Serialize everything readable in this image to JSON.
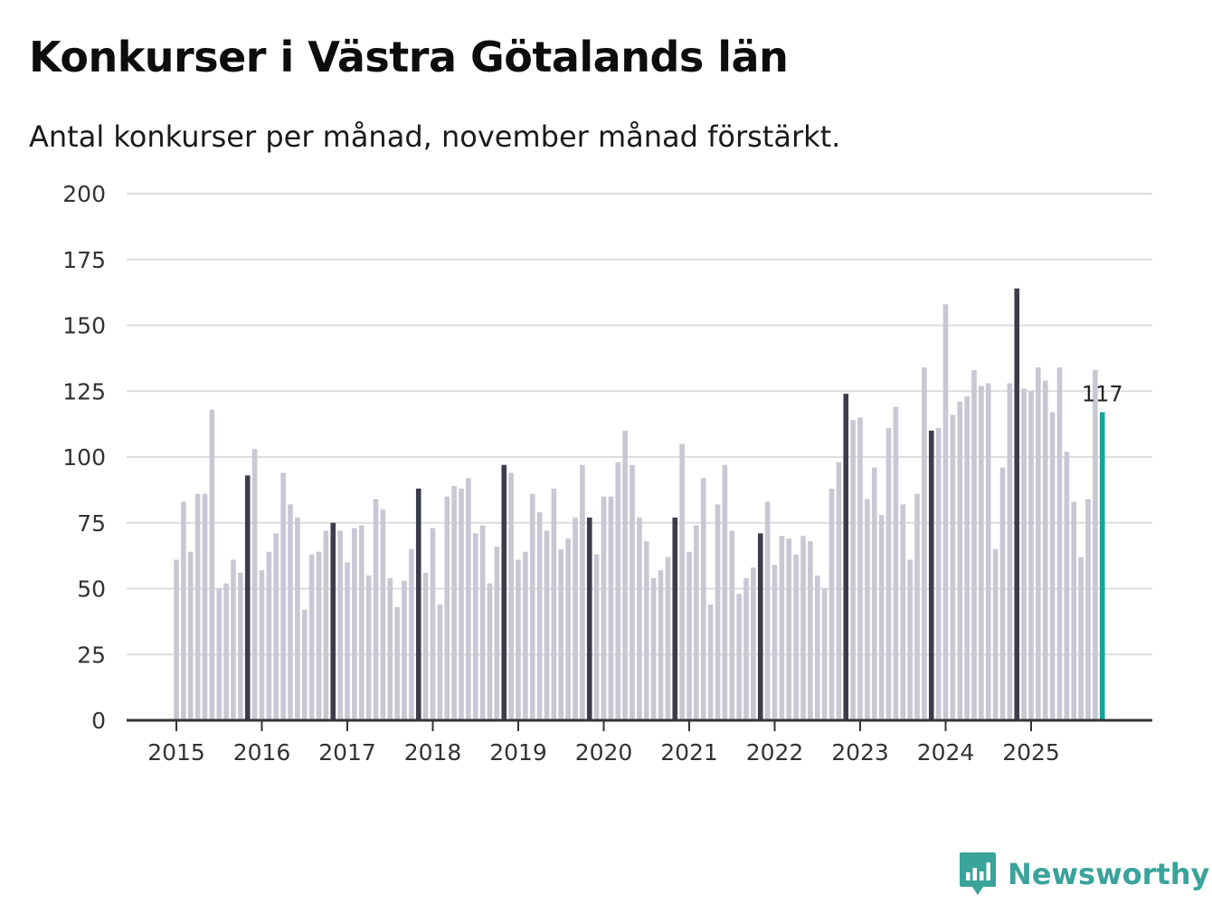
{
  "colors": {
    "normal": "#c8c7d4",
    "november": "#3d3c4d",
    "highlight": "#17a39a",
    "grid": "#dddddd",
    "axis": "#333333",
    "brand": "#3aa39a"
  },
  "brand": {
    "name": "Newsworthy",
    "icon": "bar-chart-speech-icon"
  },
  "chart_data": {
    "type": "bar",
    "title": "Konkurser i Västra Götalands län",
    "subtitle": "Antal konkurser per månad, november månad förstärkt.",
    "xlabel": "",
    "ylabel": "",
    "ylim": [
      0,
      200
    ],
    "yticks": [
      0,
      25,
      50,
      75,
      100,
      125,
      150,
      175,
      200
    ],
    "xticks": [
      "2015",
      "2016",
      "2017",
      "2018",
      "2019",
      "2020",
      "2021",
      "2022",
      "2023",
      "2024",
      "2025"
    ],
    "start": "2015-01",
    "highlight_month": 11,
    "last_label": "117",
    "values": [
      61,
      83,
      64,
      86,
      86,
      118,
      50,
      52,
      61,
      56,
      93,
      103,
      57,
      64,
      71,
      94,
      82,
      77,
      42,
      63,
      64,
      72,
      75,
      72,
      60,
      73,
      74,
      55,
      84,
      80,
      54,
      43,
      53,
      65,
      88,
      56,
      73,
      44,
      85,
      89,
      88,
      92,
      71,
      74,
      52,
      66,
      97,
      94,
      61,
      64,
      86,
      79,
      72,
      88,
      65,
      69,
      77,
      97,
      77,
      63,
      85,
      85,
      98,
      110,
      97,
      77,
      68,
      54,
      57,
      62,
      77,
      105,
      64,
      74,
      92,
      44,
      82,
      97,
      72,
      48,
      54,
      58,
      71,
      83,
      59,
      70,
      69,
      63,
      70,
      68,
      55,
      50,
      88,
      98,
      124,
      114,
      115,
      84,
      96,
      78,
      111,
      119,
      82,
      61,
      86,
      134,
      110,
      111,
      158,
      116,
      121,
      123,
      133,
      127,
      128,
      65,
      96,
      128,
      164,
      126,
      125,
      134,
      129,
      117,
      134,
      102,
      83,
      62,
      84,
      133,
      117
    ]
  }
}
